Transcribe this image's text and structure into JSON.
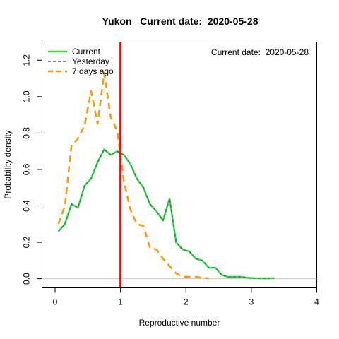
{
  "chart_data": {
    "type": "line",
    "title": "Yukon   Current date:  2020-05-28",
    "xlabel": "Reproductive number",
    "ylabel": "Probability density",
    "xlim": [
      -0.2,
      4.0
    ],
    "ylim": [
      -0.05,
      1.3
    ],
    "x_ticks": [
      "0",
      "1",
      "2",
      "3",
      "4"
    ],
    "x_tick_values": [
      0,
      1,
      2,
      3,
      4
    ],
    "y_ticks": [
      "0.0",
      "0.2",
      "0.4",
      "0.6",
      "0.8",
      "1.0",
      "1.2"
    ],
    "y_tick_values": [
      0,
      0.2,
      0.4,
      0.6,
      0.8,
      1.0,
      1.2
    ],
    "annotation": "Current date:  2020-05-28",
    "vline": {
      "x": 1.0,
      "color": "#ff0000"
    },
    "hline": {
      "y": 0.0,
      "color": "#c8c8c8"
    },
    "legend_position": "top-left",
    "series": [
      {
        "name": "Current",
        "color": "#22ee22",
        "style": "solid",
        "x": [
          0.05,
          0.15,
          0.25,
          0.35,
          0.45,
          0.55,
          0.65,
          0.75,
          0.85,
          0.95,
          1.05,
          1.15,
          1.25,
          1.35,
          1.45,
          1.55,
          1.65,
          1.75,
          1.85,
          1.95,
          2.05,
          2.15,
          2.25,
          2.35,
          2.45,
          2.55,
          2.65,
          2.75,
          2.85,
          2.95,
          3.05,
          3.15,
          3.25,
          3.35
        ],
        "y": [
          0.26,
          0.3,
          0.41,
          0.39,
          0.51,
          0.55,
          0.64,
          0.71,
          0.68,
          0.7,
          0.68,
          0.63,
          0.55,
          0.5,
          0.41,
          0.37,
          0.32,
          0.44,
          0.2,
          0.16,
          0.15,
          0.11,
          0.1,
          0.06,
          0.06,
          0.02,
          0.01,
          0.01,
          0.01,
          0.005,
          0.003,
          0.002,
          0.002,
          0.003
        ]
      },
      {
        "name": "Yesterday",
        "color": "#5555aa",
        "style": "dashed",
        "x": [
          0.05,
          0.15,
          0.25,
          0.35,
          0.45,
          0.55,
          0.65,
          0.75,
          0.85,
          0.95,
          1.05,
          1.15,
          1.25,
          1.35,
          1.45,
          1.55,
          1.65,
          1.75,
          1.85,
          1.95,
          2.05,
          2.15,
          2.25,
          2.35,
          2.45,
          2.55,
          2.65,
          2.75,
          2.85,
          2.95,
          3.05,
          3.15,
          3.25,
          3.35
        ],
        "y": [
          0.26,
          0.3,
          0.41,
          0.39,
          0.51,
          0.55,
          0.64,
          0.71,
          0.68,
          0.7,
          0.68,
          0.63,
          0.55,
          0.5,
          0.41,
          0.37,
          0.32,
          0.44,
          0.2,
          0.16,
          0.15,
          0.11,
          0.1,
          0.06,
          0.06,
          0.02,
          0.01,
          0.01,
          0.01,
          0.005,
          0.003,
          0.002,
          0.002,
          0.003
        ]
      },
      {
        "name": "7 days ago",
        "color": "#ff9900",
        "style": "dashed",
        "x": [
          0.05,
          0.15,
          0.25,
          0.35,
          0.45,
          0.55,
          0.65,
          0.75,
          0.85,
          0.95,
          1.05,
          1.15,
          1.25,
          1.35,
          1.45,
          1.55,
          1.65,
          1.75,
          1.85,
          1.95,
          2.05,
          2.15,
          2.25,
          2.35
        ],
        "y": [
          0.3,
          0.4,
          0.73,
          0.77,
          0.84,
          1.03,
          0.85,
          1.13,
          0.89,
          0.81,
          0.54,
          0.38,
          0.3,
          0.29,
          0.17,
          0.16,
          0.11,
          0.07,
          0.03,
          0.01,
          0.01,
          0.01,
          0.005,
          0.002
        ]
      }
    ]
  }
}
